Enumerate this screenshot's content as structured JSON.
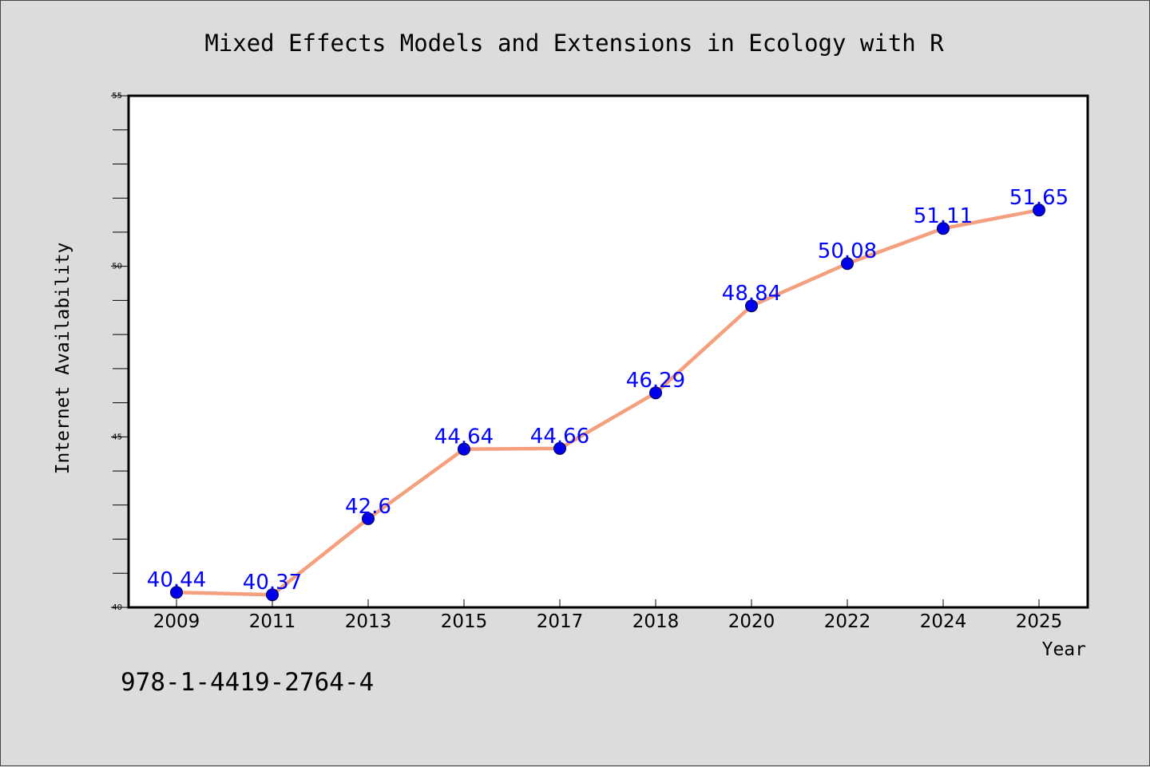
{
  "chart_data": {
    "type": "line",
    "title": "Mixed Effects Models and Extensions in Ecology with R",
    "xlabel": "Year",
    "ylabel": "Internet Availability",
    "categories": [
      "2009",
      "2011",
      "2013",
      "2015",
      "2017",
      "2018",
      "2020",
      "2022",
      "2024",
      "2025"
    ],
    "values": [
      40.44,
      40.37,
      42.6,
      44.64,
      44.66,
      46.29,
      48.84,
      50.08,
      51.11,
      51.65
    ],
    "data_labels": [
      "40.44",
      "40.37",
      "42.6",
      "44.64",
      "44.66",
      "46.29",
      "48.84",
      "50.08",
      "51.11",
      "51.65"
    ],
    "ylim": [
      40,
      55
    ],
    "y_ticks": [
      40,
      45,
      50,
      55
    ],
    "y_tick_labels": [
      "40",
      "45",
      "50",
      "55"
    ],
    "grid": false,
    "legend": "none",
    "line_color": "#f4a07e",
    "marker_color": "#0000ee",
    "label_color": "#0000ff"
  },
  "footer_text": "978-1-4419-2764-4"
}
